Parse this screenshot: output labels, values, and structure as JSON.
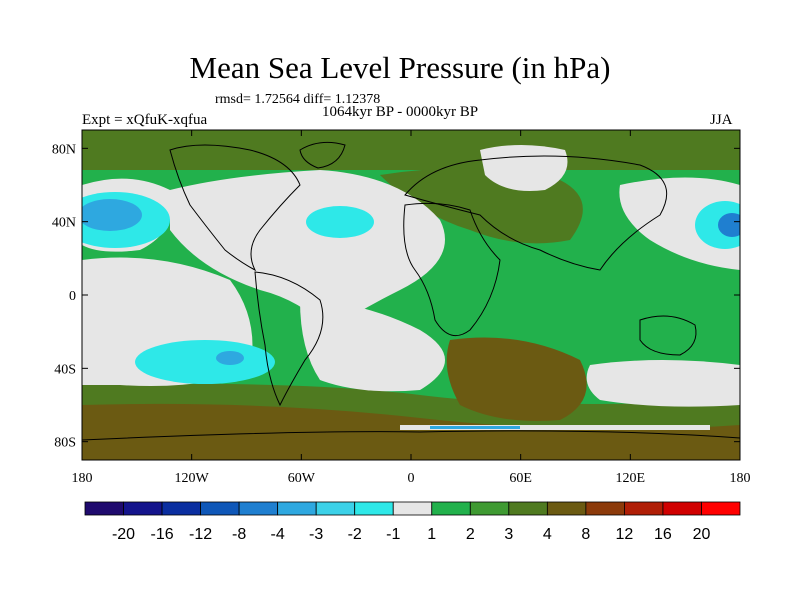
{
  "header": {
    "title": "Mean Sea Level Pressure (in hPa)",
    "stats": "rmsd= 1.72564 diff= 1.12378",
    "period": "1064kyr BP - 0000kyr BP",
    "experiment": "Expt = xQfuK-xqfua",
    "season": "JJA"
  },
  "chart_data": {
    "type": "heatmap",
    "title": "Mean Sea Level Pressure (in hPa)",
    "variable": "Mean sea level pressure difference",
    "units": "hPa",
    "season": "JJA",
    "x_axis": {
      "range": [
        -180,
        180
      ],
      "ticks": [
        -180,
        -120,
        -60,
        0,
        60,
        120,
        180
      ],
      "tick_labels": [
        "180",
        "120W",
        "60W",
        "0",
        "60E",
        "120E",
        "180"
      ]
    },
    "y_axis": {
      "range": [
        -90,
        90
      ],
      "ticks": [
        80,
        40,
        0,
        -40,
        -80
      ],
      "tick_labels": [
        "80N",
        "40N",
        "0",
        "40S",
        "80S"
      ]
    },
    "colorbar": {
      "levels": [
        -20,
        -16,
        -12,
        -8,
        -4,
        -3,
        -2,
        -1,
        1,
        2,
        3,
        4,
        8,
        12,
        16,
        20
      ],
      "labels": [
        "-20",
        "-16",
        "-12",
        "-8",
        "-4",
        "-3",
        "-2",
        "-1",
        "1",
        "2",
        "3",
        "4",
        "8",
        "12",
        "16",
        "20"
      ],
      "colors": [
        "#1f0a6e",
        "#14148c",
        "#0a2ea0",
        "#0f57b8",
        "#1f7fd0",
        "#2ea8e0",
        "#3cd1e8",
        "#2ee8e8",
        "#e6e6e6",
        "#22b14c",
        "#3f9a32",
        "#4f7a20",
        "#6b5a12",
        "#8c3a0a",
        "#b01e06",
        "#d00000",
        "#ff0000"
      ]
    },
    "fill_colors": {
      "ocean_neutral": "#e6e6e6",
      "positive_low": "#22b14c",
      "positive_mid": "#4f7a20",
      "positive_high": "#6b5a12",
      "negative_low": "#2ee8e8",
      "negative_mid": "#1f7fd0"
    }
  }
}
